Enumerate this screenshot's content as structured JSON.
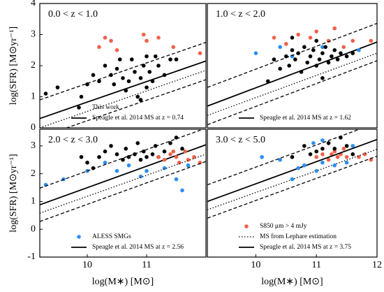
{
  "chart_data": [
    {
      "type": "scatter",
      "label": "0.0 < z < 1.0",
      "ylabel": "log(SFR) [M⊙yr⁻¹]",
      "xlim": [
        9.2,
        12
      ],
      "ylim": [
        0,
        4
      ],
      "yticks": [
        0,
        1,
        2,
        3,
        4
      ],
      "legend": "lower center",
      "series": [
        {
          "name": "This work",
          "kind": "points",
          "color": "#000000",
          "x": [
            9.3,
            9.5,
            9.9,
            10.0,
            10.1,
            10.2,
            10.3,
            10.4,
            10.45,
            10.5,
            10.55,
            10.6,
            10.65,
            10.7,
            10.75,
            10.8,
            10.85,
            10.9,
            10.95,
            11.0,
            11.05,
            11.1,
            11.15,
            11.2,
            11.3,
            11.5,
            11.4,
            10.9,
            11.0
          ],
          "values": [
            1.1,
            1.3,
            1.0,
            1.4,
            1.7,
            1.5,
            2.0,
            1.7,
            1.4,
            1.9,
            2.2,
            1.6,
            1.2,
            1.5,
            2.2,
            1.8,
            1.0,
            1.6,
            2.0,
            1.3,
            1.8,
            1.5,
            2.3,
            2.0,
            1.7,
            2.2,
            2.2,
            0.9,
            2.3
          ]
        },
        {
          "name": "Speagle et al. 2014 MS at z = 0.74",
          "kind": "line",
          "style": "solid",
          "color": "#000000",
          "x": [
            9.2,
            12
          ],
          "values": [
            0.3,
            2.15
          ]
        },
        {
          "kind": "points",
          "color": "#f0604a",
          "x": [
            10.2,
            10.3,
            10.4,
            10.5,
            10.95,
            11.0,
            11.2,
            11.45,
            11.9
          ],
          "values": [
            2.6,
            2.9,
            2.8,
            2.5,
            3.0,
            2.8,
            2.9,
            2.6,
            2.4
          ]
        },
        {
          "kind": "line",
          "style": "dashed",
          "color": "#000000",
          "x": [
            9.2,
            12
          ],
          "values": [
            0.9,
            2.75
          ]
        },
        {
          "kind": "line",
          "style": "dashed",
          "color": "#000000",
          "x": [
            9.2,
            12
          ],
          "values": [
            -0.3,
            1.55
          ]
        },
        {
          "kind": "line",
          "style": "dotted",
          "color": "#000000",
          "x": [
            9.2,
            12
          ],
          "values": [
            0.0,
            1.85
          ]
        }
      ]
    },
    {
      "type": "scatter",
      "label": "1.0 < z < 2.0",
      "xlim": [
        9.2,
        12
      ],
      "ylim": [
        0,
        4
      ],
      "legend": "lower center",
      "series": [
        {
          "name": "Speagle et al. 2014 MS at z = 1.62",
          "kind": "line",
          "style": "solid",
          "color": "#000000",
          "x": [
            9.2,
            12
          ],
          "values": [
            0.7,
            2.76
          ]
        },
        {
          "kind": "points",
          "color": "#f0604a",
          "x": [
            10.3,
            10.5,
            10.7,
            10.9,
            11.0,
            11.2,
            11.3,
            11.45,
            10.8,
            11.6,
            11.9
          ],
          "values": [
            2.9,
            2.7,
            3.0,
            2.9,
            3.1,
            2.8,
            3.2,
            2.6,
            2.6,
            2.8,
            2.8
          ]
        },
        {
          "kind": "points",
          "color": "#2b8ff0",
          "x": [
            10.0,
            10.4,
            11.1,
            11.7,
            10.6
          ],
          "values": [
            2.4,
            2.6,
            2.6,
            2.5,
            2.3
          ]
        },
        {
          "kind": "points",
          "color": "#000000",
          "x": [
            10.3,
            10.4,
            10.5,
            10.55,
            10.6,
            10.65,
            10.7,
            10.75,
            10.8,
            10.85,
            10.9,
            10.95,
            11.0,
            11.0,
            11.05,
            11.1,
            11.15,
            11.2,
            11.25,
            11.3,
            11.35,
            11.4,
            11.5,
            11.6,
            10.2,
            11.1,
            10.6
          ],
          "values": [
            2.2,
            1.9,
            2.3,
            2.0,
            2.5,
            2.2,
            2.4,
            1.8,
            2.6,
            2.1,
            2.3,
            2.5,
            2.0,
            2.8,
            2.2,
            2.4,
            2.6,
            2.1,
            2.3,
            2.5,
            2.2,
            2.4,
            2.3,
            2.4,
            1.5,
            1.6,
            2.9
          ]
        },
        {
          "kind": "line",
          "style": "dashed",
          "color": "#000000",
          "x": [
            9.2,
            12
          ],
          "values": [
            1.3,
            3.36
          ]
        },
        {
          "kind": "line",
          "style": "dashed",
          "color": "#000000",
          "x": [
            9.2,
            12
          ],
          "values": [
            0.1,
            2.16
          ]
        },
        {
          "kind": "line",
          "style": "dotted",
          "color": "#000000",
          "x": [
            9.2,
            12
          ],
          "values": [
            0.4,
            2.4
          ]
        }
      ]
    },
    {
      "type": "scatter",
      "label": "2.0 < z < 3.0",
      "ylabel": "log(SFR) [M⊙yr⁻¹]",
      "xlabel": "log(M∗) [M⊙]",
      "xlim": [
        9.2,
        12
      ],
      "ylim": [
        -1,
        3.6
      ],
      "xticks": [
        10,
        11
      ],
      "yticks": [
        -1,
        0,
        1,
        2,
        3
      ],
      "legend": "lower center",
      "series": [
        {
          "name": "ALESS SMGs",
          "kind": "points",
          "color": "#2b8ff0",
          "x": [
            9.3,
            9.6,
            10.0,
            10.3,
            10.5,
            10.7,
            10.9,
            11.0,
            11.3,
            11.5,
            11.6,
            11.7
          ],
          "values": [
            1.6,
            1.8,
            2.1,
            2.4,
            2.1,
            2.3,
            1.9,
            2.1,
            2.2,
            1.8,
            1.4,
            2.3
          ]
        },
        {
          "name": "Speagle et al. 2014 MS at z = 2.56",
          "kind": "line",
          "style": "solid",
          "color": "#000000",
          "x": [
            9.2,
            12
          ],
          "values": [
            0.88,
            3.04
          ]
        },
        {
          "kind": "points",
          "color": "#000000",
          "x": [
            10.0,
            10.2,
            10.3,
            10.4,
            10.5,
            10.6,
            10.65,
            10.7,
            10.8,
            10.85,
            10.9,
            10.95,
            11.0,
            11.1,
            11.15,
            11.2,
            11.3,
            11.4,
            11.5,
            11.6,
            9.9,
            10.1
          ],
          "values": [
            2.4,
            2.6,
            2.8,
            3.0,
            2.7,
            2.5,
            2.9,
            2.6,
            2.7,
            3.1,
            2.5,
            2.8,
            2.6,
            2.7,
            3.0,
            2.6,
            2.8,
            3.1,
            3.3,
            2.9,
            2.6,
            2.2
          ]
        },
        {
          "kind": "points",
          "color": "#f0604a",
          "x": [
            11.2,
            11.3,
            11.4,
            11.5,
            11.55,
            11.65,
            11.7,
            11.8,
            11.9,
            11.45
          ],
          "values": [
            2.6,
            2.5,
            2.7,
            2.6,
            2.4,
            2.8,
            2.5,
            2.6,
            2.4,
            2.8
          ]
        },
        {
          "kind": "line",
          "style": "dashed",
          "color": "#000000",
          "x": [
            9.2,
            12
          ],
          "values": [
            1.48,
            3.64
          ]
        },
        {
          "kind": "line",
          "style": "dashed",
          "color": "#000000",
          "x": [
            9.2,
            12
          ],
          "values": [
            0.28,
            2.44
          ]
        },
        {
          "kind": "line",
          "style": "dotted",
          "color": "#000000",
          "x": [
            9.2,
            12
          ],
          "values": [
            0.58,
            2.7
          ]
        }
      ]
    },
    {
      "type": "scatter",
      "label": "3.0 < z < 5.0",
      "xlabel": "log(M∗) [M⊙]",
      "xlim": [
        9.2,
        12
      ],
      "ylim": [
        -1,
        3.6
      ],
      "xticks": [
        10,
        11,
        12
      ],
      "legend": "lower center",
      "series": [
        {
          "name": "S850 μm > 4 mJy",
          "kind": "points",
          "color": "#f0604a",
          "x": [
            11.0,
            11.1,
            11.2,
            11.3,
            11.35,
            11.4,
            11.5,
            11.6,
            11.7,
            11.8,
            11.9,
            11.45,
            11.25
          ],
          "values": [
            2.6,
            2.7,
            2.5,
            2.8,
            2.6,
            2.7,
            2.6,
            2.7,
            2.6,
            2.7,
            2.5,
            2.9,
            2.7
          ]
        },
        {
          "name": "MS from Lephare estimation",
          "kind": "line",
          "style": "dotted",
          "color": "#000000",
          "x": [
            9.2,
            12
          ],
          "values": [
            0.7,
            2.88
          ]
        },
        {
          "name": "Speagle et al. 2014 MS at z = 3.75",
          "kind": "line",
          "style": "solid",
          "color": "#000000",
          "x": [
            9.2,
            12
          ],
          "values": [
            1.0,
            3.23
          ]
        },
        {
          "kind": "points",
          "color": "#2b8ff0",
          "x": [
            10.1,
            10.4,
            10.7,
            10.8,
            11.0,
            11.1,
            11.3,
            11.6,
            11.1,
            10.95,
            11.5,
            10.6
          ],
          "values": [
            2.6,
            2.5,
            2.2,
            2.3,
            2.1,
            2.4,
            2.3,
            3.0,
            3.2,
            3.1,
            2.4,
            1.8
          ]
        },
        {
          "kind": "points",
          "color": "#000000",
          "x": [
            10.6,
            10.8,
            11.0,
            11.1,
            11.2,
            11.3,
            11.4,
            11.5,
            10.9,
            11.6
          ],
          "values": [
            2.6,
            3.0,
            2.8,
            2.9,
            3.1,
            2.9,
            3.3,
            3.0,
            2.7,
            2.7
          ]
        },
        {
          "kind": "line",
          "style": "dashed",
          "color": "#000000",
          "x": [
            9.2,
            12
          ],
          "values": [
            1.6,
            3.83
          ]
        },
        {
          "kind": "line",
          "style": "dashed",
          "color": "#000000",
          "x": [
            9.2,
            12
          ],
          "values": [
            0.4,
            2.63
          ]
        }
      ]
    }
  ]
}
